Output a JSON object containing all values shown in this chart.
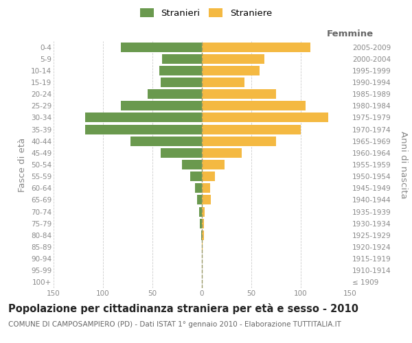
{
  "age_groups": [
    "100+",
    "95-99",
    "90-94",
    "85-89",
    "80-84",
    "75-79",
    "70-74",
    "65-69",
    "60-64",
    "55-59",
    "50-54",
    "45-49",
    "40-44",
    "35-39",
    "30-34",
    "25-29",
    "20-24",
    "15-19",
    "10-14",
    "5-9",
    "0-4"
  ],
  "birth_years": [
    "≤ 1909",
    "1910-1914",
    "1915-1919",
    "1920-1924",
    "1925-1929",
    "1930-1934",
    "1935-1939",
    "1940-1944",
    "1945-1949",
    "1950-1954",
    "1955-1959",
    "1960-1964",
    "1965-1969",
    "1970-1974",
    "1975-1979",
    "1980-1984",
    "1985-1989",
    "1990-1994",
    "1995-1999",
    "2000-2004",
    "2005-2009"
  ],
  "males": [
    0,
    0,
    0,
    0,
    1,
    2,
    3,
    5,
    7,
    12,
    20,
    42,
    72,
    118,
    118,
    82,
    55,
    42,
    43,
    40,
    82
  ],
  "females": [
    0,
    0,
    0,
    1,
    2,
    2,
    3,
    9,
    8,
    13,
    23,
    40,
    75,
    100,
    128,
    105,
    75,
    43,
    58,
    63,
    110
  ],
  "male_color": "#6a994e",
  "female_color": "#f4b942",
  "bar_height": 0.82,
  "xlim": 150,
  "title": "Popolazione per cittadinanza straniera per età e sesso - 2010",
  "subtitle": "COMUNE DI CAMPOSAMPIERO (PD) - Dati ISTAT 1° gennaio 2010 - Elaborazione TUTTITALIA.IT",
  "xlabel_right": "Femmine",
  "ylabel_left": "Fasce di età",
  "ylabel_right": "Anni di nascita",
  "legend_male": "Stranieri",
  "legend_female": "Straniere",
  "bg_color": "#ffffff",
  "grid_color": "#cccccc",
  "tick_color": "#888888",
  "title_fontsize": 10.5,
  "subtitle_fontsize": 7.5,
  "label_fontsize": 9.5,
  "tick_fontsize": 7.5,
  "legend_fontsize": 9.5,
  "center_line_color": "#999966"
}
